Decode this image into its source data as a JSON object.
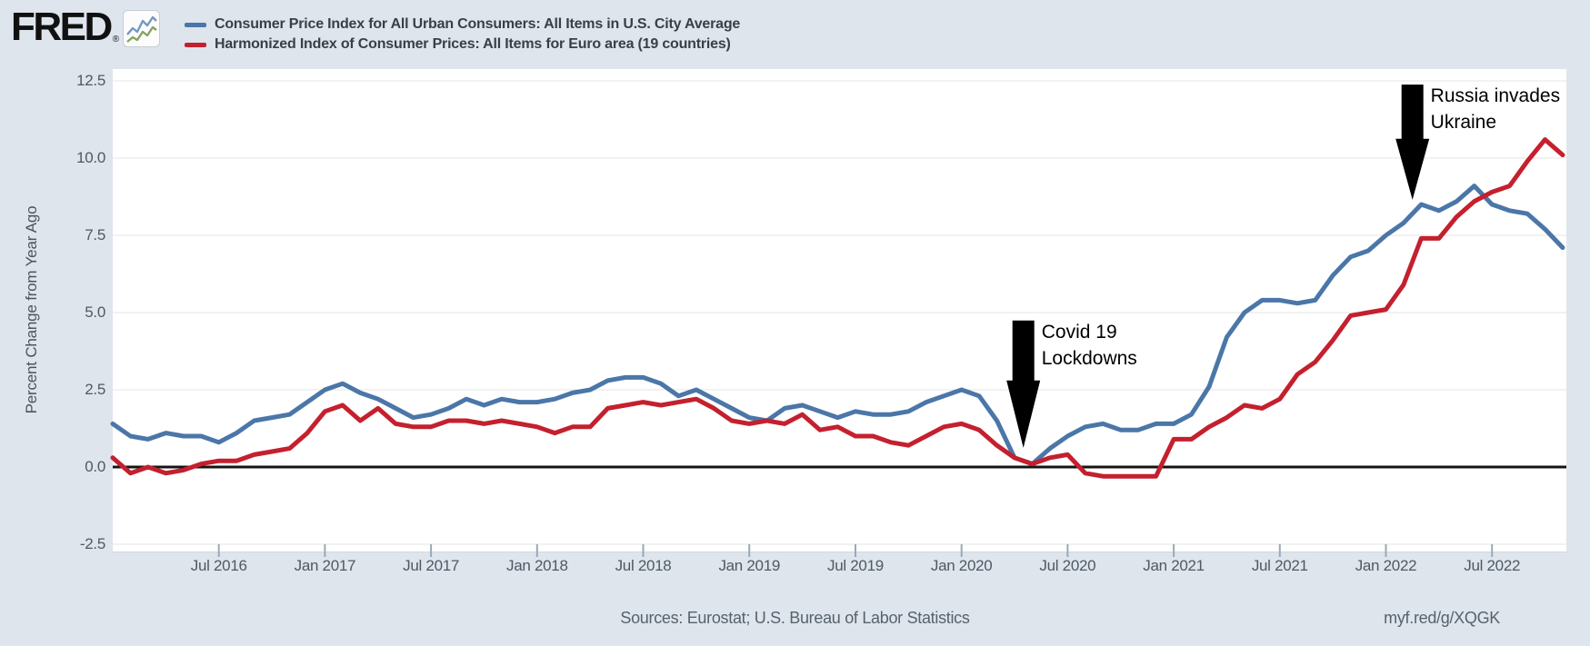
{
  "page_background": "#dee5ed",
  "header": {
    "logo_text": "FRED",
    "logo_registered": "®",
    "legend": [
      {
        "label": "Consumer Price Index for All Urban Consumers: All Items in U.S. City Average",
        "color": "#4b76a8"
      },
      {
        "label": "Harmonized Index of Consumer Prices: All Items for Euro area (19 countries)",
        "color": "#c4202e"
      }
    ]
  },
  "chart_data": {
    "type": "line",
    "frequency": "monthly",
    "x_start": "2016-01",
    "x_end": "2022-11",
    "ylabel": "Percent Change from Year Ago",
    "ylim": [
      -2.74,
      12.88
    ],
    "yticks": [
      -2.5,
      0.0,
      2.5,
      5.0,
      7.5,
      10.0,
      12.5
    ],
    "grid": "horizontal",
    "zero_line": true,
    "legend_position": "top-left",
    "x_tick_labels": [
      "Jul 2016",
      "Jan 2017",
      "Jul 2017",
      "Jan 2018",
      "Jul 2018",
      "Jan 2019",
      "Jul 2019",
      "Jan 2020",
      "Jul 2020",
      "Jan 2021",
      "Jul 2021",
      "Jan 2022",
      "Jul 2022"
    ],
    "x_tick_indices": [
      6,
      12,
      18,
      24,
      30,
      36,
      42,
      48,
      54,
      60,
      66,
      72,
      78
    ],
    "series": [
      {
        "name": "Consumer Price Index for All Urban Consumers: All Items in U.S. City Average",
        "color": "#4b76a8",
        "values": [
          1.4,
          1.0,
          0.9,
          1.1,
          1.0,
          1.0,
          0.8,
          1.1,
          1.5,
          1.6,
          1.7,
          2.1,
          2.5,
          2.7,
          2.4,
          2.2,
          1.9,
          1.6,
          1.7,
          1.9,
          2.2,
          2.0,
          2.2,
          2.1,
          2.1,
          2.2,
          2.4,
          2.5,
          2.8,
          2.9,
          2.9,
          2.7,
          2.3,
          2.5,
          2.2,
          1.9,
          1.6,
          1.5,
          1.9,
          2.0,
          1.8,
          1.6,
          1.8,
          1.7,
          1.7,
          1.8,
          2.1,
          2.3,
          2.5,
          2.3,
          1.5,
          0.3,
          0.1,
          0.6,
          1.0,
          1.3,
          1.4,
          1.2,
          1.2,
          1.4,
          1.4,
          1.7,
          2.6,
          4.2,
          5.0,
          5.4,
          5.4,
          5.3,
          5.4,
          6.2,
          6.8,
          7.0,
          7.5,
          7.9,
          8.5,
          8.3,
          8.6,
          9.1,
          8.5,
          8.3,
          8.2,
          7.7,
          7.1
        ]
      },
      {
        "name": "Harmonized Index of Consumer Prices: All Items for Euro area (19 countries)",
        "color": "#c4202e",
        "values": [
          0.3,
          -0.2,
          0.0,
          -0.2,
          -0.1,
          0.1,
          0.2,
          0.2,
          0.4,
          0.5,
          0.6,
          1.1,
          1.8,
          2.0,
          1.5,
          1.9,
          1.4,
          1.3,
          1.3,
          1.5,
          1.5,
          1.4,
          1.5,
          1.4,
          1.3,
          1.1,
          1.3,
          1.3,
          1.9,
          2.0,
          2.1,
          2.0,
          2.1,
          2.2,
          1.9,
          1.5,
          1.4,
          1.5,
          1.4,
          1.7,
          1.2,
          1.3,
          1.0,
          1.0,
          0.8,
          0.7,
          1.0,
          1.3,
          1.4,
          1.2,
          0.7,
          0.3,
          0.1,
          0.3,
          0.4,
          -0.2,
          -0.3,
          -0.3,
          -0.3,
          -0.3,
          0.9,
          0.9,
          1.3,
          1.6,
          2.0,
          1.9,
          2.2,
          3.0,
          3.4,
          4.1,
          4.9,
          5.0,
          5.1,
          5.9,
          7.4,
          7.4,
          8.1,
          8.6,
          8.9,
          9.1,
          9.9,
          10.6,
          10.1
        ]
      }
    ],
    "annotations": [
      {
        "lines": [
          "Covid 19",
          "Lockdowns"
        ],
        "x_index": 51.5,
        "tip_value": 0.62,
        "top_value": 4.74
      },
      {
        "lines": [
          "Russia invades",
          "Ukraine"
        ],
        "x_index": 73.5,
        "tip_value": 8.65,
        "top_value": 12.38
      }
    ]
  },
  "footer": {
    "sources": "Sources: Eurostat; U.S. Bureau of Labor Statistics",
    "link": "myf.red/g/XQGK"
  }
}
